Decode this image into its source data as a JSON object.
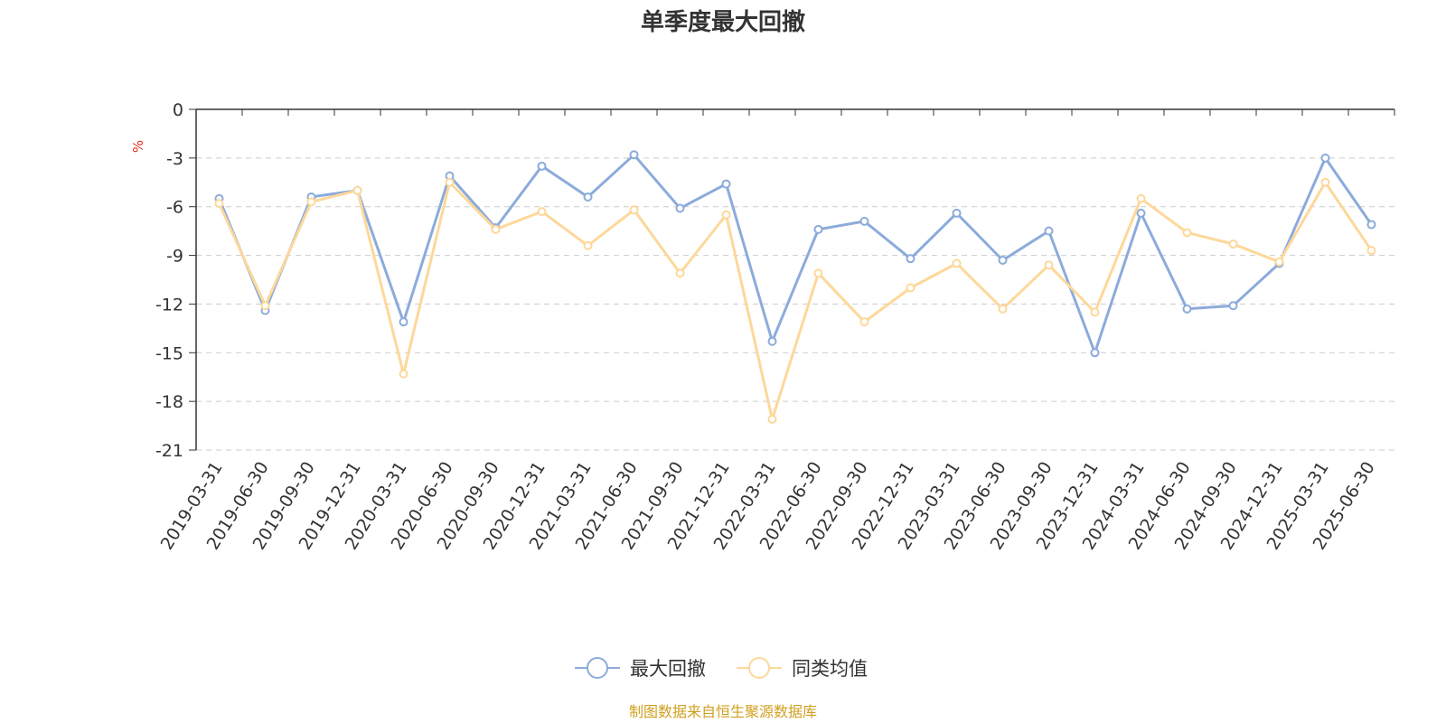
{
  "chart_data": {
    "type": "line",
    "title": "单季度最大回撤",
    "ylabel": "%",
    "ylim": [
      -21,
      0
    ],
    "yticks": [
      0,
      -3,
      -6,
      -9,
      -12,
      -15,
      -18,
      -21
    ],
    "grid": true,
    "legend_position": "bottom-center",
    "categories": [
      "2019-03-31",
      "2019-06-30",
      "2019-09-30",
      "2019-12-31",
      "2020-03-31",
      "2020-06-30",
      "2020-09-30",
      "2020-12-31",
      "2021-03-31",
      "2021-06-30",
      "2021-09-30",
      "2021-12-31",
      "2022-03-31",
      "2022-06-30",
      "2022-09-30",
      "2022-12-31",
      "2023-03-31",
      "2023-06-30",
      "2023-09-30",
      "2023-12-31",
      "2024-03-31",
      "2024-06-30",
      "2024-09-30",
      "2024-12-31",
      "2025-03-31",
      "2025-06-30"
    ],
    "series": [
      {
        "name": "最大回撤",
        "color": "#8cabdb",
        "values": [
          -5.5,
          -12.4,
          -5.4,
          -5.0,
          -13.1,
          -4.1,
          -7.3,
          -3.5,
          -5.4,
          -2.8,
          -6.1,
          -4.6,
          -14.3,
          -7.4,
          -6.9,
          -9.2,
          -6.4,
          -9.3,
          -7.5,
          -15.0,
          -6.4,
          -12.3,
          -12.1,
          -9.5,
          -3.0,
          -7.1
        ]
      },
      {
        "name": "同类均值",
        "color": "#fdd89a",
        "values": [
          -5.8,
          -12.1,
          -5.7,
          -5.0,
          -16.3,
          -4.5,
          -7.4,
          -6.3,
          -8.4,
          -6.2,
          -10.1,
          -6.5,
          -19.1,
          -10.1,
          -13.1,
          -11.0,
          -9.5,
          -12.3,
          -9.6,
          -12.5,
          -5.5,
          -7.6,
          -8.3,
          -9.4,
          -4.5,
          -8.7
        ]
      }
    ]
  },
  "source_note": "制图数据来自恒生聚源数据库"
}
